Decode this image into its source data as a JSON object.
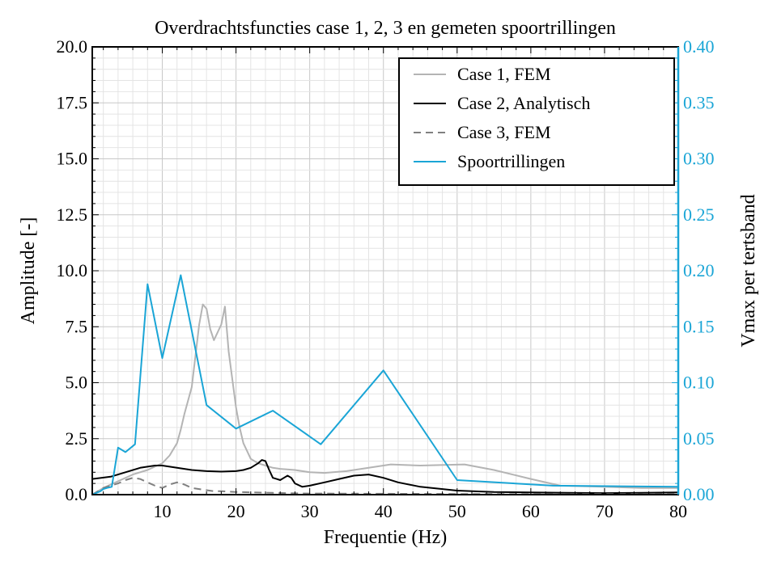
{
  "chart_data": {
    "type": "line",
    "title": "Overdrachtsfuncties case 1, 2, 3 en gemeten spoortrillingen",
    "xlabel": "Frequentie (Hz)",
    "ylabel": "Amplitude [-]",
    "ylabel_right": "Vmax per tertsband",
    "xlim": [
      0.5,
      80
    ],
    "ylim": [
      0,
      20
    ],
    "ylim_right": [
      0,
      0.4
    ],
    "x_ticks": [
      10,
      20,
      30,
      40,
      50,
      60,
      70,
      80
    ],
    "y_ticks": [
      "0.0",
      "2.5",
      "5.0",
      "7.5",
      "10.0",
      "12.5",
      "15.0",
      "17.5",
      "20.0"
    ],
    "y_ticks_right": [
      "0.00",
      "0.05",
      "0.10",
      "0.15",
      "0.20",
      "0.25",
      "0.30",
      "0.35",
      "0.40"
    ],
    "grid": true,
    "legend_position": "top-right",
    "colors": {
      "case1": "#b4b4b4",
      "case2": "#000000",
      "case3": "#808080",
      "spoor": "#1aa5d6"
    },
    "series": [
      {
        "name": "Case 1, FEM",
        "axis": "left",
        "style": "solid",
        "color": "#b4b4b4",
        "x": [
          0.5,
          2,
          4,
          6,
          8,
          10,
          11,
          12,
          12.5,
          13,
          14,
          15,
          15.5,
          16,
          16.5,
          17,
          18,
          18.5,
          19,
          20,
          20.5,
          21,
          22,
          23,
          24,
          25,
          26,
          28,
          30,
          32,
          35,
          38,
          41,
          45,
          51,
          55,
          60,
          64,
          70,
          75,
          80
        ],
        "y": [
          0.0,
          0.3,
          0.6,
          0.9,
          1.1,
          1.4,
          1.75,
          2.3,
          2.9,
          3.6,
          4.8,
          7.6,
          8.5,
          8.3,
          7.4,
          6.9,
          7.6,
          8.4,
          6.4,
          3.9,
          3.0,
          2.3,
          1.6,
          1.4,
          1.3,
          1.2,
          1.15,
          1.1,
          1.0,
          0.97,
          1.05,
          1.2,
          1.35,
          1.3,
          1.35,
          1.1,
          0.7,
          0.4,
          0.35,
          0.3,
          0.3
        ]
      },
      {
        "name": "Case 2, Analytisch",
        "axis": "left",
        "style": "solid",
        "color": "#000000",
        "x": [
          0.5,
          3,
          5,
          7,
          9,
          10,
          12,
          14,
          16,
          18,
          20,
          21,
          22,
          23,
          23.5,
          24,
          24.5,
          25,
          25.5,
          26,
          26.5,
          27,
          27.5,
          28,
          29,
          30,
          32,
          34,
          36,
          38,
          40,
          42,
          45,
          50,
          55,
          60,
          65,
          70,
          75,
          80
        ],
        "y": [
          0.7,
          0.8,
          1.0,
          1.2,
          1.3,
          1.3,
          1.2,
          1.1,
          1.05,
          1.03,
          1.05,
          1.1,
          1.2,
          1.4,
          1.55,
          1.5,
          1.1,
          0.75,
          0.7,
          0.65,
          0.75,
          0.85,
          0.75,
          0.5,
          0.35,
          0.4,
          0.55,
          0.7,
          0.85,
          0.9,
          0.75,
          0.55,
          0.35,
          0.18,
          0.12,
          0.1,
          0.08,
          0.07,
          0.08,
          0.1
        ]
      },
      {
        "name": "Case 3, FEM",
        "axis": "left",
        "style": "dashed",
        "color": "#808080",
        "x": [
          0.5,
          2,
          4,
          5,
          6,
          7,
          8,
          9,
          10,
          11,
          12,
          13,
          14,
          15,
          16,
          17,
          18,
          20,
          22,
          25,
          30,
          40,
          50,
          60,
          70,
          80
        ],
        "y": [
          0.0,
          0.3,
          0.5,
          0.65,
          0.75,
          0.7,
          0.55,
          0.4,
          0.3,
          0.45,
          0.55,
          0.45,
          0.3,
          0.25,
          0.2,
          0.15,
          0.15,
          0.12,
          0.1,
          0.08,
          0.05,
          0.04,
          0.03,
          0.02,
          0.02,
          0.02
        ]
      },
      {
        "name": "Spoortrillingen",
        "axis": "right",
        "style": "solid",
        "color": "#1aa5d6",
        "x": [
          0.5,
          1.6,
          2,
          2.5,
          3.15,
          4,
          5,
          6.3,
          8,
          10,
          12.5,
          16,
          20,
          25,
          31.5,
          40,
          50,
          63,
          80
        ],
        "y": [
          0.0,
          0.003,
          0.005,
          0.006,
          0.007,
          0.042,
          0.038,
          0.045,
          0.188,
          0.122,
          0.196,
          0.08,
          0.059,
          0.075,
          0.045,
          0.111,
          0.013,
          0.008,
          0.007
        ]
      }
    ]
  }
}
